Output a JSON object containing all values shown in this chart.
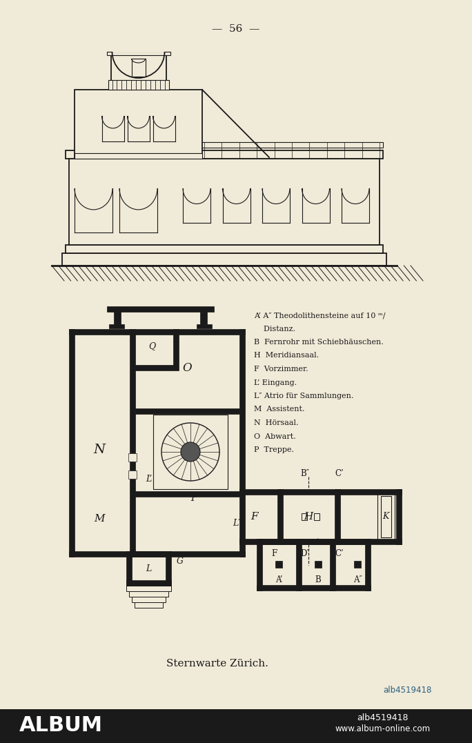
{
  "page_number": "56",
  "caption": "Sternwarte Zürich.",
  "bg_color": "#f0ead8",
  "text_color": "#1a1a1a",
  "legend_lines": [
    "A’ A″ Theodolithensteine auf 10 ᵐ/",
    "    Distanz.",
    "B  Fernrohr mit Schiebhäuschen.",
    "H  Meridiansaal.",
    "F  Vorzimmer.",
    "L’ Eingang.",
    "L″ Atrio für Sammlungen.",
    "M  Assistent.",
    "N  Hörsaal.",
    "O  Abwart.",
    "P  Treppe."
  ]
}
